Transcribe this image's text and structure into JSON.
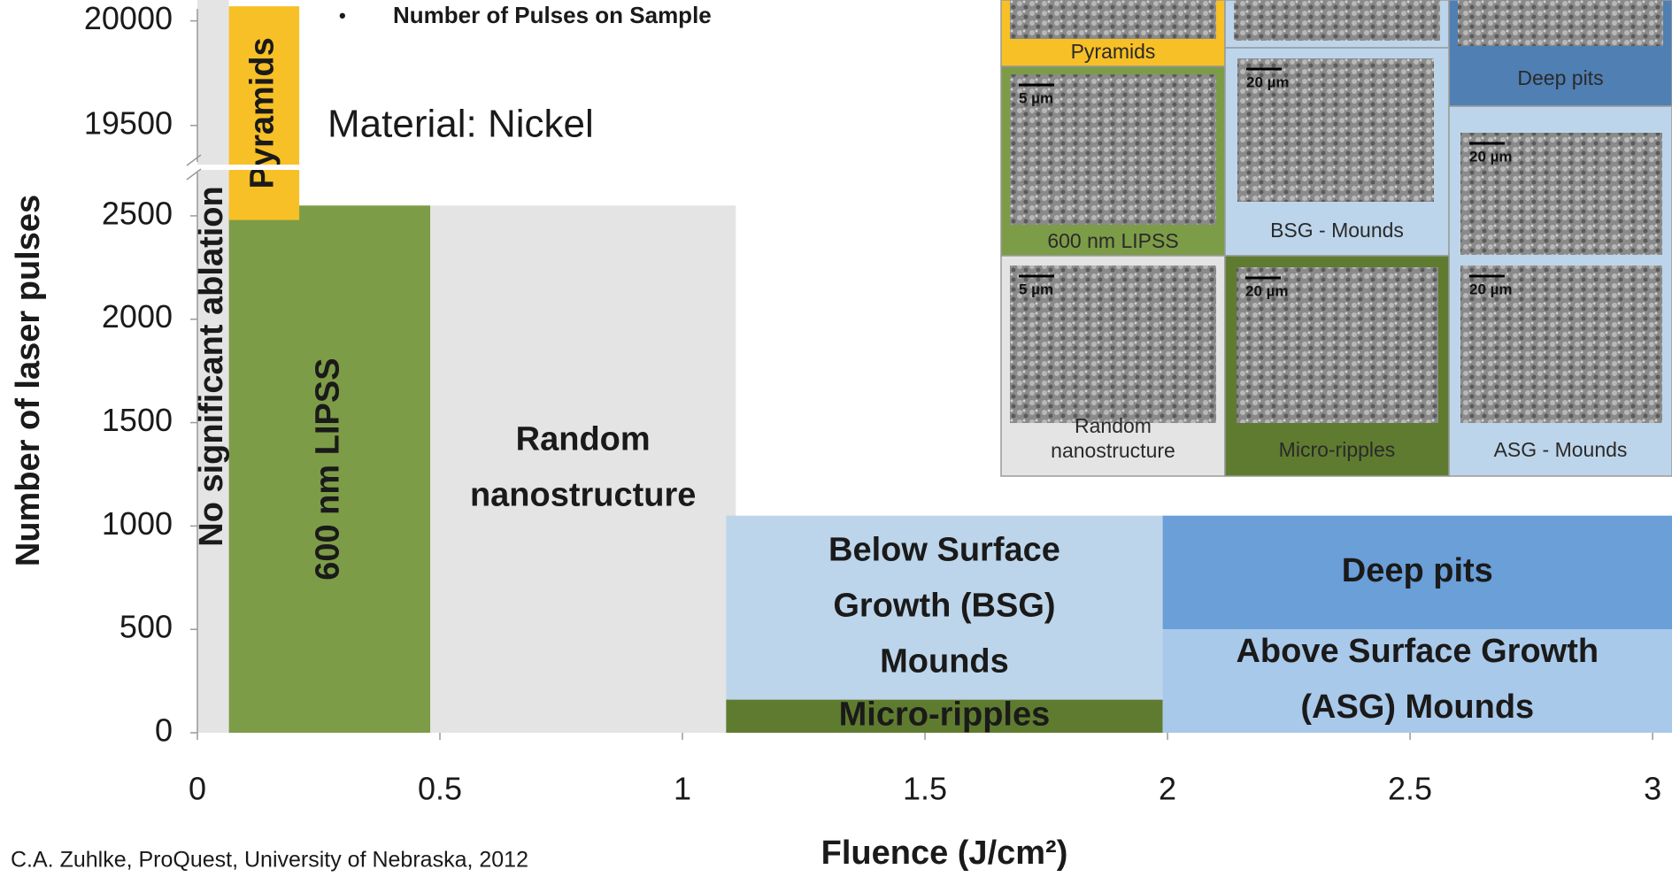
{
  "chart_data": {
    "type": "region",
    "bullet": "•",
    "header": "Number of Pulses on Sample",
    "note": "Material: Nickel",
    "source": "C.A. Zuhlke,  ProQuest, University of Nebraska, 2012",
    "x_label": "Fluence (J/cm²)",
    "y_label": "Number of laser pulses",
    "xlim": [
      0,
      3.04
    ],
    "xticks": [
      0,
      0.5,
      1,
      1.5,
      2,
      2.5,
      3
    ],
    "ylim": [
      0,
      2735
    ],
    "yticks": [
      0,
      500,
      1000,
      1500,
      2000,
      2500
    ],
    "ylim_upper": [
      19300,
      20100
    ],
    "yticks_upper": [
      19500,
      20000
    ],
    "regions": [
      {
        "name": [
          "No significant ablation"
        ],
        "x": [
          0,
          0.065
        ],
        "y": [
          0,
          20100
        ],
        "color": "#e4e4e4",
        "vertical": true
      },
      {
        "name": [
          "Random",
          "nanostructure"
        ],
        "x": [
          0.48,
          1.11
        ],
        "y": [
          0,
          2550
        ],
        "color": "#e4e4e4"
      },
      {
        "name": [
          "600 nm LIPSS"
        ],
        "x": [
          0.065,
          0.48
        ],
        "y": [
          0,
          2550
        ],
        "color": "#7d9c47",
        "vertical": true
      },
      {
        "name": [
          "Pyramids"
        ],
        "x": [
          0.065,
          0.21
        ],
        "y": [
          2480,
          20070
        ],
        "color": "#f8c027",
        "vertical": true
      },
      {
        "name": [
          "Below Surface",
          "Growth (BSG)",
          "Mounds"
        ],
        "x": [
          1.09,
          1.99
        ],
        "y": [
          160,
          1050
        ],
        "color": "#bdd5ea"
      },
      {
        "name": [
          "Micro-ripples"
        ],
        "x": [
          1.09,
          1.99
        ],
        "y": [
          0,
          160
        ],
        "color": "#5f7b30"
      },
      {
        "name": [
          "Deep pits"
        ],
        "x": [
          1.99,
          3.04
        ],
        "y": [
          500,
          1050
        ],
        "color": "#6a9fd8"
      },
      {
        "name": [
          "Above Surface Growth",
          "(ASG) Mounds"
        ],
        "x": [
          1.99,
          3.04
        ],
        "y": [
          0,
          500
        ],
        "color": "#a9c9ea"
      }
    ]
  },
  "inset": {
    "panels": [
      {
        "label": [
          "Pyramids"
        ],
        "color": "#f8c027"
      },
      {
        "color": "#bdd5ea"
      },
      {
        "label": [
          "Deep pits"
        ],
        "color": "#4f7fb3"
      },
      {
        "label": [
          "600 nm LIPSS"
        ],
        "color": "#7d9c47",
        "scale_bars": [
          "5 µm"
        ]
      },
      {
        "label": [
          "BSG - Mounds"
        ],
        "color": "#bdd5ea",
        "scale_bars": [
          "20 µm"
        ]
      },
      {
        "label": [
          "ASG - Mounds"
        ],
        "color": "#bdd5ea",
        "scale_bars": [
          "20 µm",
          "20 µm"
        ]
      },
      {
        "label": [
          "Random",
          "nanostructure"
        ],
        "color": "#e4e4e4",
        "scale_bars": [
          "5 µm"
        ]
      },
      {
        "label": [
          "Micro-ripples"
        ],
        "color": "#5f7b30",
        "scale_bars": [
          "20 µm"
        ]
      }
    ]
  }
}
